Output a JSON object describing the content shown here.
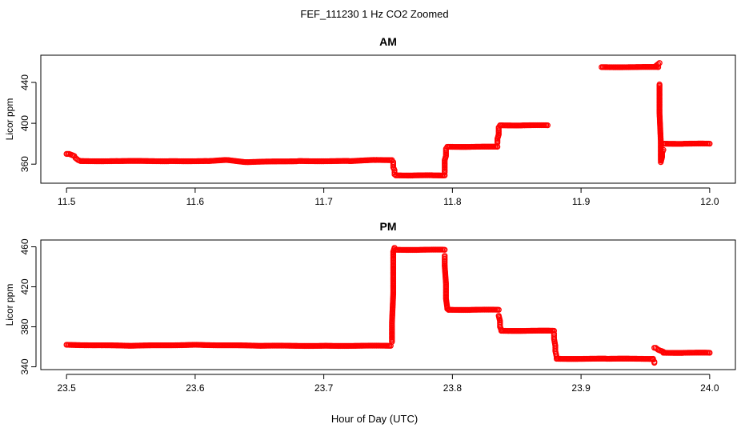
{
  "figure": {
    "title": "FEF_111230  1 Hz CO2 Zoomed",
    "xlabel": "Hour of Day (UTC)"
  },
  "colors": {
    "points": "#ff0000",
    "axes": "#000000",
    "background": "#ffffff"
  },
  "chart_data": [
    {
      "type": "scatter",
      "title": "AM",
      "xlabel": "",
      "ylabel": "Licor ppm",
      "xlim": [
        11.5,
        12.0
      ],
      "ylim": [
        346,
        462
      ],
      "xticks": [
        11.5,
        11.6,
        11.7,
        11.8,
        11.9,
        12.0
      ],
      "xtick_labels": [
        "11.5",
        "11.6",
        "11.7",
        "11.8",
        "11.9",
        "12.0"
      ],
      "yticks": [
        360,
        400,
        440
      ],
      "ytick_labels": [
        "360",
        "400",
        "440"
      ],
      "grid": false,
      "series": [
        {
          "segments": [
            {
              "x": [
                11.5,
                11.502,
                11.504,
                11.506
              ],
              "y": [
                370,
                370,
                369,
                368
              ]
            },
            {
              "x": [
                11.507,
                11.508,
                11.509,
                11.51,
                11.511,
                11.513
              ],
              "y": [
                366,
                365,
                364,
                363.5,
                363,
                363
              ]
            },
            {
              "x": [
                11.513,
                11.54,
                11.58,
                11.61,
                11.625,
                11.64,
                11.68,
                11.72,
                11.74,
                11.753
              ],
              "y": [
                363,
                363,
                363,
                363,
                364,
                362,
                363,
                363,
                364,
                364
              ]
            },
            {
              "x": [
                11.754,
                11.754,
                11.754,
                11.755,
                11.755,
                11.755
              ],
              "y": [
                362,
                359,
                357,
                354,
                352,
                350
              ]
            },
            {
              "x": [
                11.756,
                11.77,
                11.785,
                11.794
              ],
              "y": [
                349,
                349,
                349,
                349
              ]
            },
            {
              "x": [
                11.794,
                11.794,
                11.794,
                11.794,
                11.795,
                11.795,
                11.795
              ],
              "y": [
                352,
                356,
                360,
                364,
                368,
                372,
                375
              ]
            },
            {
              "x": [
                11.796,
                11.815,
                11.835
              ],
              "y": [
                377,
                377,
                377
              ]
            },
            {
              "x": [
                11.835,
                11.835,
                11.836,
                11.836,
                11.836
              ],
              "y": [
                381,
                385,
                389,
                393,
                396
              ]
            },
            {
              "x": [
                11.837,
                11.855,
                11.874
              ],
              "y": [
                398,
                398,
                398
              ]
            },
            {
              "x": [
                11.916,
                11.94,
                11.96
              ],
              "y": [
                455,
                455,
                455
              ]
            },
            {
              "x": [
                11.958,
                11.959,
                11.96,
                11.961
              ],
              "y": [
                456,
                457,
                458,
                459
              ]
            },
            {
              "x": [
                11.961,
                11.961,
                11.962,
                11.962,
                11.962,
                11.963,
                11.963,
                11.964
              ],
              "y": [
                438,
                410,
                382,
                364,
                362,
                367,
                371,
                374
              ]
            },
            {
              "x": [
                11.964,
                11.98,
                12.0
              ],
              "y": [
                380,
                380,
                380
              ]
            }
          ]
        }
      ]
    },
    {
      "type": "scatter",
      "title": "PM",
      "xlabel": "Hour of Day (UTC)",
      "ylabel": "Licor ppm",
      "xlim": [
        23.5,
        24.0
      ],
      "ylim": [
        342,
        462
      ],
      "xticks": [
        23.5,
        23.6,
        23.7,
        23.8,
        23.9,
        24.0
      ],
      "xtick_labels": [
        "23.5",
        "23.6",
        "23.7",
        "23.8",
        "23.9",
        "24.0"
      ],
      "yticks": [
        340,
        380,
        420,
        460
      ],
      "ytick_labels": [
        "340",
        "380",
        "420",
        "460"
      ],
      "grid": false,
      "series": [
        {
          "segments": [
            {
              "x": [
                23.5,
                23.55,
                23.6,
                23.65,
                23.7,
                23.752
              ],
              "y": [
                362,
                361,
                362,
                361,
                361,
                361
              ]
            },
            {
              "x": [
                23.753,
                23.753,
                23.754,
                23.754,
                23.754,
                23.755
              ],
              "y": [
                365,
                384,
                413,
                440,
                455,
                459
              ]
            },
            {
              "x": [
                23.756,
                23.775,
                23.794
              ],
              "y": [
                457,
                457,
                457
              ]
            },
            {
              "x": [
                23.794,
                23.794,
                23.795,
                23.795,
                23.796,
                23.796,
                23.797
              ],
              "y": [
                451,
                441,
                423,
                408,
                399,
                398,
                397
              ]
            },
            {
              "x": [
                23.797,
                23.815,
                23.836
              ],
              "y": [
                397,
                397,
                397
              ]
            },
            {
              "x": [
                23.836,
                23.837,
                23.837,
                23.838
              ],
              "y": [
                391,
                386,
                380,
                377
              ]
            },
            {
              "x": [
                23.838,
                23.858,
                23.879
              ],
              "y": [
                376,
                376,
                376
              ]
            },
            {
              "x": [
                23.879,
                23.879,
                23.88,
                23.88,
                23.881
              ],
              "y": [
                373,
                368,
                361,
                356,
                350
              ]
            },
            {
              "x": [
                23.881,
                23.92,
                23.956
              ],
              "y": [
                348,
                348,
                348
              ]
            },
            {
              "x": [
                23.956,
                23.957,
                23.957
              ],
              "y": [
                347,
                345,
                344
              ]
            },
            {
              "x": [
                23.957,
                23.958,
                23.959,
                23.96,
                23.962,
                23.964
              ],
              "y": [
                359,
                359,
                358,
                357,
                356,
                355
              ]
            },
            {
              "x": [
                23.964,
                23.98,
                24.0
              ],
              "y": [
                354,
                354,
                354
              ]
            }
          ]
        }
      ]
    }
  ]
}
